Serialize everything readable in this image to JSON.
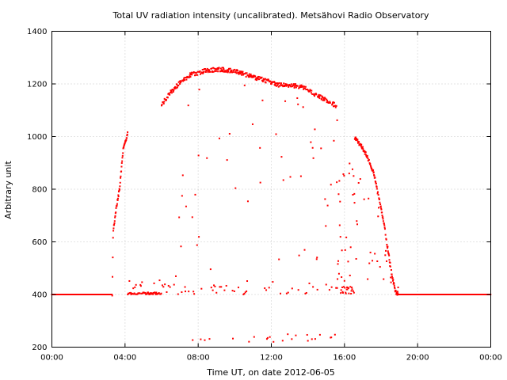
{
  "chart_data": {
    "type": "scatter",
    "title": "Total UV radiation intensity (uncalibrated). Metsähovi Radio Observatory",
    "xlabel": "Time UT, on date 2012-06-05",
    "ylabel": "Arbitrary unit",
    "xlim": [
      0,
      24
    ],
    "ylim": [
      200,
      1400
    ],
    "x_ticks": [
      0,
      4,
      8,
      12,
      16,
      20,
      24
    ],
    "x_tick_labels": [
      "00:00",
      "04:00",
      "08:00",
      "12:00",
      "16:00",
      "20:00",
      "00:00"
    ],
    "y_ticks": [
      200,
      400,
      600,
      800,
      1000,
      1200,
      1400
    ],
    "y_tick_labels": [
      "200",
      "400",
      "600",
      "800",
      "1000",
      "1200",
      "1400"
    ],
    "grid": true,
    "legend": "none",
    "series_color": "#ff0000",
    "envelope": [
      [
        3.3,
        400
      ],
      [
        3.35,
        640
      ],
      [
        3.5,
        720
      ],
      [
        3.7,
        800
      ],
      [
        3.9,
        950
      ],
      [
        4.1,
        1000
      ],
      [
        4.15,
        1020
      ]
    ],
    "envelope_b": [
      [
        6.0,
        1120
      ],
      [
        6.4,
        1160
      ],
      [
        6.8,
        1190
      ],
      [
        7.2,
        1215
      ],
      [
        7.6,
        1235
      ],
      [
        8.0,
        1242
      ],
      [
        8.4,
        1250
      ],
      [
        8.8,
        1253
      ],
      [
        9.2,
        1255
      ],
      [
        9.6,
        1252
      ],
      [
        10.0,
        1250
      ],
      [
        10.4,
        1240
      ],
      [
        10.8,
        1230
      ],
      [
        11.2,
        1222
      ],
      [
        11.6,
        1215
      ],
      [
        12.0,
        1205
      ],
      [
        12.4,
        1196
      ],
      [
        12.8,
        1195
      ],
      [
        13.2,
        1194
      ],
      [
        13.6,
        1190
      ],
      [
        14.0,
        1180
      ],
      [
        14.4,
        1160
      ],
      [
        14.8,
        1145
      ],
      [
        15.2,
        1130
      ],
      [
        15.6,
        1115
      ]
    ],
    "envelope_c": [
      [
        16.55,
        995
      ],
      [
        16.8,
        975
      ],
      [
        17.0,
        955
      ],
      [
        17.2,
        930
      ],
      [
        17.4,
        900
      ],
      [
        17.6,
        860
      ],
      [
        17.8,
        800
      ],
      [
        18.0,
        730
      ],
      [
        18.2,
        650
      ],
      [
        18.4,
        560
      ],
      [
        18.6,
        470
      ],
      [
        18.8,
        410
      ],
      [
        18.95,
        400
      ]
    ],
    "baseline": 400
  }
}
